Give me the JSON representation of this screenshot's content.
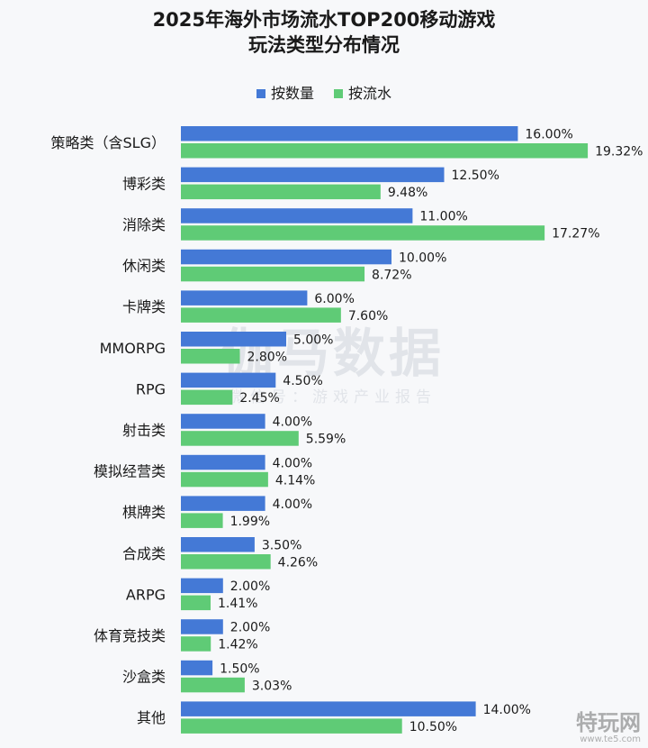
{
  "title_line1": "2025年海外市场流水TOP200移动游戏",
  "title_line2": "玩法类型分布情况",
  "colors": {
    "count": "#4479d6",
    "revenue": "#5fcb76"
  },
  "watermark": {
    "main": "伽马数据",
    "sub": "微信号：游戏产业报告"
  },
  "corner_logo": {
    "main": "特玩网",
    "sub": "www.te5.com"
  },
  "chart_data": {
    "type": "bar",
    "orientation": "horizontal",
    "categories": [
      "策略类（含SLG）",
      "博彩类",
      "消除类",
      "休闲类",
      "卡牌类",
      "MMORPG",
      "RPG",
      "射击类",
      "模拟经营类",
      "棋牌类",
      "合成类",
      "ARPG",
      "体育竞技类",
      "沙盒类",
      "其他"
    ],
    "series": [
      {
        "name": "按数量",
        "values": [
          16.0,
          12.5,
          11.0,
          10.0,
          6.0,
          5.0,
          4.5,
          4.0,
          4.0,
          4.0,
          3.5,
          2.0,
          2.0,
          1.5,
          14.0
        ]
      },
      {
        "name": "按流水",
        "values": [
          19.32,
          9.48,
          17.27,
          8.72,
          7.6,
          2.8,
          2.45,
          5.59,
          4.14,
          1.99,
          4.26,
          1.41,
          1.42,
          3.03,
          10.5
        ]
      }
    ],
    "value_suffix": "%",
    "xlim": [
      0,
      22
    ],
    "legend_position": "top-center",
    "grid": false
  }
}
